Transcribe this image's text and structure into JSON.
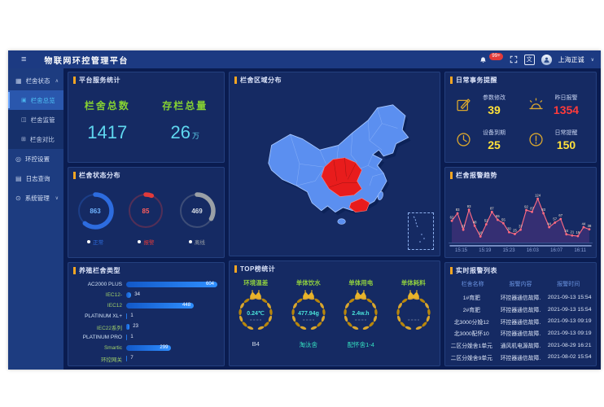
{
  "header": {
    "title": "物联网环控管理平台",
    "notification_badge": "99+",
    "user_name": "上海正诚",
    "user_caret": "∨",
    "translate_glyph": "文",
    "burger_glyph": "≡"
  },
  "sidebar": {
    "groups": [
      {
        "label": "栏舍状态",
        "icon": "pen-status-icon",
        "glyph": "▦",
        "caret": "∧",
        "children": [
          {
            "label": "栏舍总览",
            "icon": "overview-icon",
            "glyph": "▣",
            "active": true
          },
          {
            "label": "栏舍监管",
            "icon": "monitor-icon",
            "glyph": "◫",
            "active": false
          },
          {
            "label": "栏舍对比",
            "icon": "compare-icon",
            "glyph": "⊞",
            "active": false
          }
        ]
      },
      {
        "label": "环控设置",
        "icon": "env-settings-icon",
        "glyph": "◎",
        "caret": "",
        "children": []
      },
      {
        "label": "日志查询",
        "icon": "log-query-icon",
        "glyph": "▤",
        "caret": "",
        "children": []
      },
      {
        "label": "系统管理",
        "icon": "system-icon",
        "glyph": "⊙",
        "caret": "∨",
        "children": []
      }
    ]
  },
  "panels": {
    "service_stats": {
      "title": "平台服务统计",
      "items": [
        {
          "label": "栏舍总数",
          "value": "1417",
          "unit": ""
        },
        {
          "label": "存栏总量",
          "value": "26",
          "unit": "万"
        }
      ]
    },
    "region_map": {
      "title": "栏舍区域分布"
    },
    "daily_affairs": {
      "title": "日常事务提醒",
      "items": [
        {
          "icon": "edit-icon",
          "label": "参数修改",
          "value": "39",
          "color": "#ffe13a"
        },
        {
          "icon": "siren-icon",
          "label": "昨日报警",
          "value": "1354",
          "color": "#ff3b3b"
        },
        {
          "icon": "clock-icon",
          "label": "设备到期",
          "value": "25",
          "color": "#ffe13a"
        },
        {
          "icon": "alert-icon",
          "label": "日常提醒",
          "value": "150",
          "color": "#ffe13a"
        }
      ]
    },
    "status_distribution": {
      "title": "栏舍状态分布"
    },
    "alarm_trend": {
      "title": "栏舍报警趋势"
    },
    "pen_types": {
      "title": "养殖栏舍类型"
    },
    "top_stats": {
      "title": "TOP榜统计",
      "items": [
        {
          "label": "环境温差",
          "value": "0.24℃",
          "name": "B4"
        },
        {
          "label": "单体饮水",
          "value": "477.94g",
          "name": "淘汰舍"
        },
        {
          "label": "单体用电",
          "value": "2.4w.h",
          "name": "配怀舍1-4"
        },
        {
          "label": "单体耗料",
          "value": "",
          "name": ""
        }
      ]
    },
    "alarm_list": {
      "title": "实时报警列表",
      "columns": [
        "栏舍名称",
        "报警内容",
        "报警时间"
      ],
      "rows": [
        [
          "1#育肥",
          "环控器通信故障.",
          "2021-09-13 15:54"
        ],
        [
          "2#育肥",
          "环控器通信故障.",
          "2021-09-13 15:54"
        ],
        [
          "北3000分娩12",
          "环控器通信故障.",
          "2021-09-13 09:19"
        ],
        [
          "北3000配怀10",
          "环控器通信故障.",
          "2021-09-13 09:19"
        ],
        [
          "二区分娩舍1单元",
          "通风机电源故障.",
          "2021-08-29 16:21"
        ],
        [
          "二区分娩舍9单元",
          "环控器通信故障.",
          "2021-08-02 15:54"
        ]
      ]
    }
  },
  "chart_data": [
    {
      "type": "pie",
      "subtype": "donut-rings",
      "title": "栏舍状态分布",
      "series": [
        {
          "name": "正常",
          "value": 863,
          "color": "#2d6cdf",
          "text_color": "#6fb3ff"
        },
        {
          "name": "报警",
          "value": 85,
          "color": "#e23a3a",
          "text_color": "#ff5d5d"
        },
        {
          "name": "离线",
          "value": 469,
          "color": "#9aa0a6",
          "text_color": "#d8dde4"
        }
      ],
      "total": 1417,
      "legend_position": "bottom"
    },
    {
      "type": "bar",
      "orientation": "horizontal",
      "title": "养殖栏舍类型",
      "categories": [
        "AC2000 PLUS",
        "IEC12-",
        "IEC12",
        "PLATINUM XL+",
        "IEC22系列",
        "PLATINUM PRO",
        "Smartic",
        "环控网关"
      ],
      "values": [
        604,
        34,
        448,
        1,
        23,
        1,
        299,
        7
      ],
      "label_colors": [
        "#cfe0f5",
        "#9fd06a",
        "#9fd06a",
        "#cfe0f5",
        "#9fd06a",
        "#cfe0f5",
        "#9fd06a",
        "#9fd06a"
      ],
      "xlim": [
        0,
        650
      ],
      "bar_color": "#2f8fff"
    },
    {
      "type": "line",
      "title": "栏舍报警趋势",
      "x_ticks": [
        "15:15",
        "15:19",
        "15:23",
        "16:03",
        "16:07",
        "16:11"
      ],
      "values": [
        62,
        83,
        37,
        93,
        48,
        18,
        52,
        87,
        65,
        55,
        30,
        25,
        37,
        92,
        87,
        124,
        83,
        44,
        57,
        67,
        24,
        21,
        19,
        44,
        38
      ],
      "ylim": [
        0,
        140
      ],
      "line_color": "#ff6b81",
      "area_color": "rgba(120,60,150,0.32)",
      "point_label_color": "#f2e3d2",
      "grid": false
    }
  ],
  "colors": {
    "accent_orange": "#f5a623",
    "stat_label_green": "#86d232",
    "stat_value_cyan": "#5fd7ef",
    "gold": "#d9a62e",
    "alarm_red": "#ff3b3b",
    "reminder_yellow": "#ffe13a",
    "map_blue": "#5b8ff0",
    "map_red": "#e81c1c",
    "top_value_cyan": "#49e0d8"
  }
}
